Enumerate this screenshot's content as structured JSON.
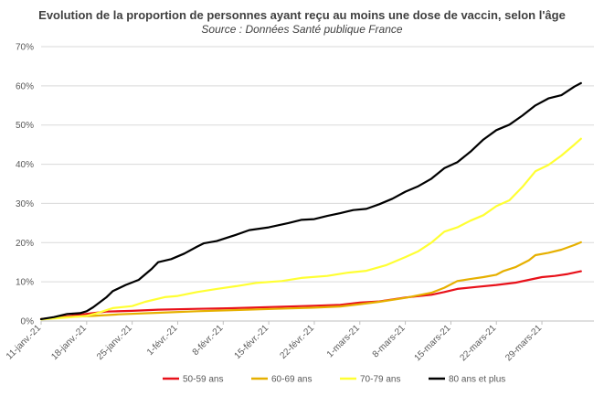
{
  "chart_data": {
    "type": "line",
    "title": "Evolution de la proportion de personnes ayant reçu au moins une dose de vaccin, selon l'âge",
    "subtitle": "Source : Données Santé publique France",
    "xlabel": "",
    "ylabel": "",
    "ylim": [
      0,
      70
    ],
    "yticks": [
      "0%",
      "10%",
      "20%",
      "30%",
      "40%",
      "50%",
      "60%",
      "70%"
    ],
    "x_range_days": [
      0,
      85
    ],
    "xticks": [
      {
        "day": 0,
        "label": "11-janv.-21"
      },
      {
        "day": 7,
        "label": "18-janv.-21"
      },
      {
        "day": 14,
        "label": "25-janv.-21"
      },
      {
        "day": 21,
        "label": "1-févr.-21"
      },
      {
        "day": 28,
        "label": "8-févr.-21"
      },
      {
        "day": 35,
        "label": "15-févr.-21"
      },
      {
        "day": 42,
        "label": "22-févr.-21"
      },
      {
        "day": 49,
        "label": "1-mars-21"
      },
      {
        "day": 56,
        "label": "8-mars-21"
      },
      {
        "day": 63,
        "label": "15-mars-21"
      },
      {
        "day": 70,
        "label": "22-mars-21"
      },
      {
        "day": 77,
        "label": "29-mars-21"
      }
    ],
    "grid": true,
    "legend_position": "bottom",
    "series": [
      {
        "name": "50-59 ans",
        "color": "#e8111a",
        "points": [
          [
            0,
            0.5
          ],
          [
            3,
            1.0
          ],
          [
            6,
            1.6
          ],
          [
            8,
            2.0
          ],
          [
            10,
            2.4
          ],
          [
            14,
            2.6
          ],
          [
            18,
            2.9
          ],
          [
            24,
            3.1
          ],
          [
            30,
            3.3
          ],
          [
            36,
            3.6
          ],
          [
            42,
            3.9
          ],
          [
            46,
            4.1
          ],
          [
            49,
            4.7
          ],
          [
            52,
            5.0
          ],
          [
            56,
            6.0
          ],
          [
            60,
            6.7
          ],
          [
            62,
            7.4
          ],
          [
            64,
            8.2
          ],
          [
            67,
            8.7
          ],
          [
            70,
            9.2
          ],
          [
            73,
            9.8
          ],
          [
            75,
            10.5
          ],
          [
            77,
            11.2
          ],
          [
            79,
            11.5
          ],
          [
            81,
            12.0
          ],
          [
            83,
            12.7
          ]
        ]
      },
      {
        "name": "60-69 ans",
        "color": "#e6b000",
        "points": [
          [
            0,
            0.5
          ],
          [
            4,
            1.0
          ],
          [
            8,
            1.3
          ],
          [
            12,
            1.7
          ],
          [
            18,
            2.1
          ],
          [
            24,
            2.5
          ],
          [
            30,
            2.8
          ],
          [
            36,
            3.1
          ],
          [
            42,
            3.4
          ],
          [
            46,
            3.7
          ],
          [
            49,
            4.3
          ],
          [
            52,
            4.9
          ],
          [
            56,
            5.9
          ],
          [
            60,
            7.2
          ],
          [
            62,
            8.5
          ],
          [
            64,
            10.2
          ],
          [
            66,
            10.7
          ],
          [
            68,
            11.2
          ],
          [
            70,
            11.8
          ],
          [
            71,
            12.7
          ],
          [
            73,
            13.8
          ],
          [
            75,
            15.5
          ],
          [
            76,
            16.8
          ],
          [
            78,
            17.4
          ],
          [
            80,
            18.2
          ],
          [
            82,
            19.4
          ],
          [
            83,
            20.1
          ]
        ]
      },
      {
        "name": "70-79 ans",
        "color": "#ffff33",
        "points": [
          [
            0,
            0.4
          ],
          [
            4,
            0.9
          ],
          [
            7,
            1.3
          ],
          [
            9,
            2.2
          ],
          [
            11,
            3.3
          ],
          [
            14,
            3.8
          ],
          [
            16,
            4.9
          ],
          [
            19,
            6.1
          ],
          [
            21,
            6.4
          ],
          [
            24,
            7.4
          ],
          [
            27,
            8.2
          ],
          [
            30,
            8.9
          ],
          [
            33,
            9.7
          ],
          [
            37,
            10.2
          ],
          [
            40,
            11.0
          ],
          [
            44,
            11.5
          ],
          [
            47,
            12.3
          ],
          [
            50,
            12.8
          ],
          [
            53,
            14.2
          ],
          [
            56,
            16.3
          ],
          [
            58,
            17.8
          ],
          [
            60,
            20.0
          ],
          [
            62,
            22.8
          ],
          [
            64,
            23.9
          ],
          [
            66,
            25.6
          ],
          [
            68,
            27.0
          ],
          [
            70,
            29.3
          ],
          [
            72,
            30.8
          ],
          [
            74,
            34.2
          ],
          [
            76,
            38.2
          ],
          [
            78,
            39.8
          ],
          [
            80,
            42.2
          ],
          [
            82,
            45.0
          ],
          [
            83,
            46.5
          ]
        ]
      },
      {
        "name": "80 ans et plus",
        "color": "#000000",
        "points": [
          [
            0,
            0.5
          ],
          [
            2,
            1.0
          ],
          [
            4,
            1.8
          ],
          [
            6,
            2.0
          ],
          [
            7,
            2.5
          ],
          [
            8,
            3.5
          ],
          [
            10,
            6.0
          ],
          [
            11,
            7.6
          ],
          [
            13,
            9.2
          ],
          [
            15,
            10.5
          ],
          [
            17,
            13.3
          ],
          [
            18,
            15.0
          ],
          [
            20,
            15.8
          ],
          [
            22,
            17.2
          ],
          [
            24,
            19.0
          ],
          [
            25,
            19.8
          ],
          [
            27,
            20.4
          ],
          [
            30,
            22.0
          ],
          [
            32,
            23.2
          ],
          [
            35,
            23.9
          ],
          [
            38,
            25.0
          ],
          [
            40,
            25.8
          ],
          [
            42,
            26.0
          ],
          [
            44,
            26.8
          ],
          [
            46,
            27.5
          ],
          [
            48,
            28.3
          ],
          [
            50,
            28.6
          ],
          [
            52,
            29.8
          ],
          [
            54,
            31.2
          ],
          [
            56,
            33.0
          ],
          [
            58,
            34.4
          ],
          [
            60,
            36.3
          ],
          [
            62,
            39.0
          ],
          [
            64,
            40.5
          ],
          [
            66,
            43.2
          ],
          [
            68,
            46.3
          ],
          [
            70,
            48.7
          ],
          [
            72,
            50.1
          ],
          [
            74,
            52.4
          ],
          [
            76,
            55.0
          ],
          [
            78,
            56.8
          ],
          [
            80,
            57.6
          ],
          [
            82,
            59.8
          ],
          [
            83,
            60.7
          ]
        ]
      }
    ]
  }
}
